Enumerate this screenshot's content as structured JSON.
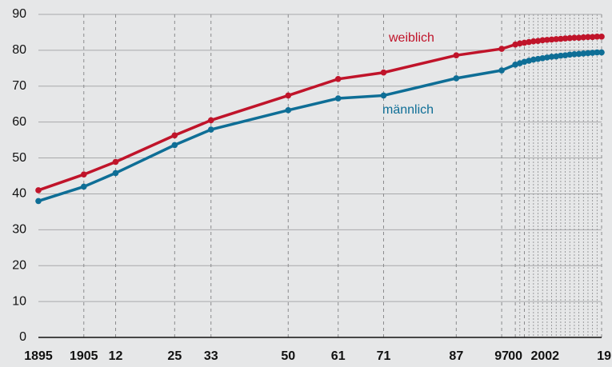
{
  "chart_data": {
    "type": "line",
    "x": [
      1895,
      1905,
      1912,
      1925,
      1933,
      1950,
      1961,
      1971,
      1987,
      1997,
      2000,
      2001,
      2002,
      2003,
      2004,
      2005,
      2006,
      2007,
      2008,
      2009,
      2010,
      2011,
      2012,
      2013,
      2014,
      2015,
      2016,
      2017,
      2018,
      2019
    ],
    "series": [
      {
        "name": "weiblich",
        "color": "#c0142a",
        "values": [
          41.0,
          45.4,
          48.9,
          56.3,
          60.5,
          67.4,
          72.0,
          73.8,
          78.6,
          80.4,
          81.6,
          81.9,
          82.1,
          82.3,
          82.5,
          82.6,
          82.8,
          82.9,
          83.0,
          83.1,
          83.2,
          83.3,
          83.4,
          83.5,
          83.5,
          83.6,
          83.7,
          83.7,
          83.8,
          83.8
        ]
      },
      {
        "name": "männlich",
        "color": "#0e6e96",
        "values": [
          38.0,
          42.0,
          45.8,
          53.6,
          57.9,
          63.3,
          66.6,
          67.4,
          72.2,
          74.4,
          76.0,
          76.4,
          76.8,
          77.1,
          77.4,
          77.6,
          77.8,
          78.0,
          78.2,
          78.3,
          78.5,
          78.6,
          78.8,
          78.9,
          79.0,
          79.1,
          79.2,
          79.3,
          79.4,
          79.4
        ]
      }
    ],
    "xlim": [
      1895,
      2019
    ],
    "xticks": [
      1895,
      1905,
      {
        "value": 1912,
        "label": "12"
      },
      {
        "value": 1925,
        "label": "25"
      },
      {
        "value": 1933,
        "label": "33"
      },
      {
        "value": 1950,
        "label": "50"
      },
      {
        "value": 1961,
        "label": "61"
      },
      {
        "value": 1971,
        "label": "71"
      },
      {
        "value": 1987,
        "label": "87"
      },
      {
        "value": 1997,
        "label": "97"
      },
      {
        "value": 2000,
        "label": "00"
      },
      2002,
      {
        "value": 2019,
        "label": "19"
      }
    ],
    "minor_xticks": [
      2001,
      2003,
      2004,
      2005,
      2006,
      2007,
      2008,
      2009,
      2010,
      2011,
      2012,
      2013,
      2014,
      2015,
      2016,
      2017,
      2018
    ],
    "ylim": [
      0,
      90
    ],
    "yticks": [
      0,
      10,
      20,
      30,
      40,
      50,
      60,
      70,
      80,
      90
    ],
    "grid": true
  }
}
